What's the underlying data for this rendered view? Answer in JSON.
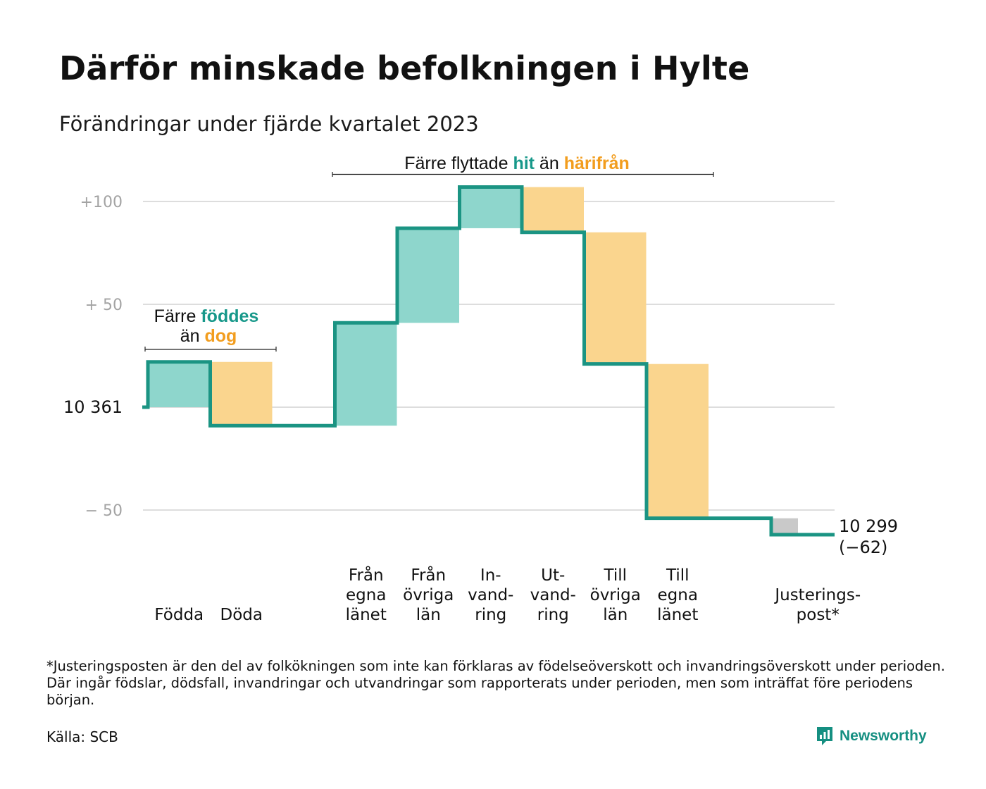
{
  "title": "Därför minskade befolkningen i Hylte",
  "subtitle": "Förändringar under fjärde kvartalet 2023",
  "colors": {
    "increase": "#8ed6cc",
    "decrease": "#fad58e",
    "adjustment": "#c9c9c9",
    "line": "#1b9483",
    "teal_text": "#17988a",
    "orange_text": "#f29d1e",
    "grid": "#dddddd",
    "tick_text": "#a3a3a3"
  },
  "annotations": {
    "births": {
      "line1": "Färre",
      "teal": "föddes",
      "line2": "än",
      "orange": "dog"
    },
    "migration": {
      "prefix": "Färre flyttade",
      "teal": "hit",
      "middle": "än",
      "orange": "härifrån"
    }
  },
  "chart_data": {
    "type": "waterfall",
    "title": "Därför minskade befolkningen i Hylte",
    "subtitle": "Förändringar under fjärde kvartalet 2023",
    "start_value": 10361,
    "start_label": "10  361",
    "end_value": 10299,
    "end_label": "10 299",
    "change_label": "(−62)",
    "y_ticks": [
      {
        "value": 100,
        "label": "+100"
      },
      {
        "value": 50,
        "label": "+  50"
      },
      {
        "value": 0,
        "label": ""
      },
      {
        "value": -50,
        "label": "−  50"
      }
    ],
    "ylim": [
      -62,
      108
    ],
    "grid": true,
    "steps": [
      {
        "label": [
          "Födda"
        ],
        "delta": 22,
        "kind": "increase"
      },
      {
        "label": [
          "Döda"
        ],
        "delta": -31,
        "kind": "decrease"
      },
      {
        "label": [],
        "delta": 0,
        "kind": "gap"
      },
      {
        "label": [
          "Från",
          "egna",
          "länet"
        ],
        "delta": 50,
        "kind": "increase"
      },
      {
        "label": [
          "Från",
          "övriga",
          "län"
        ],
        "delta": 46,
        "kind": "increase"
      },
      {
        "label": [
          "In-",
          "vand-",
          "ring"
        ],
        "delta": 20,
        "kind": "increase"
      },
      {
        "label": [
          "Ut-",
          "vand-",
          "ring"
        ],
        "delta": -22,
        "kind": "decrease"
      },
      {
        "label": [
          "Till",
          "övriga",
          "län"
        ],
        "delta": -64,
        "kind": "decrease"
      },
      {
        "label": [
          "Till",
          "egna",
          "länet"
        ],
        "delta": -75,
        "kind": "decrease"
      },
      {
        "label": [],
        "delta": 0,
        "kind": "gap"
      },
      {
        "label": [
          "Justerings-",
          "post*"
        ],
        "delta": -8,
        "kind": "adjustment"
      }
    ]
  },
  "footnote": "*Justeringsposten är den del av folkökningen som inte kan förklaras av födelseöverskott och invandringsöverskott under perioden. Där ingår födslar, dödsfall, invandringar och utvandringar som rapporterats under perioden, men som inträffat före periodens början.",
  "source": "Källa: SCB",
  "brand": {
    "name": "Newsworthy",
    "icon": "newsworthy-logo-icon"
  }
}
